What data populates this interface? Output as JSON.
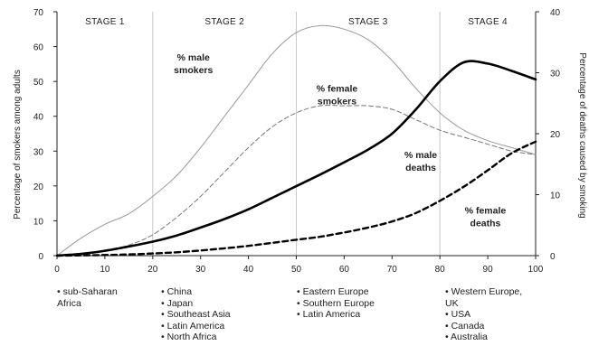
{
  "chart_data": {
    "type": "line",
    "title": "",
    "xlabel": "",
    "ylabel": "Percentage of smokers among adults",
    "y2label": "Percentage of deaths caused by smoking",
    "xlim": [
      0,
      100
    ],
    "ylim": [
      0,
      70
    ],
    "y2lim": [
      0,
      40
    ],
    "x_ticks": [
      "0",
      "10",
      "20",
      "30",
      "40",
      "50",
      "60",
      "70",
      "80",
      "90",
      "100"
    ],
    "y_ticks": [
      "0",
      "10",
      "20",
      "30",
      "40",
      "50",
      "60",
      "70"
    ],
    "y2_ticks": [
      "0",
      "10",
      "20",
      "30",
      "40"
    ],
    "grid": false,
    "stages": [
      {
        "label": "STAGE 1",
        "x_start": 0,
        "x_end": 20
      },
      {
        "label": "STAGE 2",
        "x_start": 20,
        "x_end": 50
      },
      {
        "label": "STAGE 3",
        "x_start": 50,
        "x_end": 80
      },
      {
        "label": "STAGE 4",
        "x_start": 80,
        "x_end": 100
      }
    ],
    "series": [
      {
        "name": "% male smokers",
        "axis": "left",
        "style": "thin-solid",
        "color": "#999999",
        "x": [
          0,
          5,
          10,
          15,
          20,
          25,
          30,
          35,
          40,
          45,
          50,
          55,
          60,
          65,
          70,
          75,
          80,
          85,
          90,
          95,
          100
        ],
        "values": [
          0,
          5,
          9,
          12,
          17,
          23,
          31,
          40,
          49,
          58,
          64,
          66,
          65,
          62,
          56,
          48,
          41,
          36,
          33,
          31,
          29
        ]
      },
      {
        "name": "% female smokers",
        "axis": "left",
        "style": "thin-dashed",
        "color": "#777777",
        "x": [
          0,
          5,
          10,
          15,
          20,
          25,
          30,
          35,
          40,
          45,
          50,
          55,
          60,
          65,
          70,
          75,
          80,
          85,
          90,
          95,
          100
        ],
        "values": [
          0,
          0.5,
          1.5,
          3,
          6,
          11,
          17,
          24,
          31,
          37,
          41,
          43,
          43,
          43,
          42,
          39,
          36,
          34,
          32,
          30,
          29
        ]
      },
      {
        "name": "% male deaths",
        "axis": "right",
        "style": "thick-solid",
        "color": "#000000",
        "x": [
          0,
          5,
          10,
          15,
          20,
          25,
          30,
          35,
          40,
          45,
          50,
          55,
          60,
          65,
          70,
          75,
          80,
          85,
          90,
          95,
          100
        ],
        "values": [
          0,
          0.3,
          0.8,
          1.5,
          2.3,
          3.3,
          4.6,
          6,
          7.6,
          9.5,
          11.4,
          13.3,
          15.3,
          17.4,
          20,
          24,
          28.6,
          31.7,
          31.5,
          30.3,
          28.9
        ]
      },
      {
        "name": "% female deaths",
        "axis": "right",
        "style": "thick-dashed",
        "color": "#000000",
        "x": [
          0,
          5,
          10,
          15,
          20,
          25,
          30,
          35,
          40,
          45,
          50,
          55,
          60,
          65,
          70,
          75,
          80,
          85,
          90,
          95,
          100
        ],
        "values": [
          0,
          0.05,
          0.1,
          0.2,
          0.35,
          0.55,
          0.85,
          1.2,
          1.6,
          2.1,
          2.6,
          3.1,
          3.8,
          4.6,
          5.6,
          7,
          9,
          11.3,
          14,
          16.8,
          18.7
        ]
      }
    ],
    "annotations": [
      {
        "series": "% male smokers",
        "lines": [
          "% male",
          "smokers"
        ],
        "x": 28.5,
        "y": 56
      },
      {
        "series": "% female smokers",
        "lines": [
          "% female",
          "smokers"
        ],
        "x": 58.5,
        "y": 47
      },
      {
        "series": "% male deaths",
        "lines": [
          "% male",
          "deaths"
        ],
        "x": 76,
        "y": 28
      },
      {
        "series": "% female deaths",
        "lines": [
          "% female",
          "deaths"
        ],
        "x": 89.5,
        "y": 12
      }
    ],
    "regions": [
      {
        "stage": "STAGE 1",
        "items": [
          "• sub-Saharan",
          "Africa"
        ]
      },
      {
        "stage": "STAGE 2",
        "items": [
          "• China",
          "• Japan",
          "• Southeast Asia",
          "• Latin America",
          "• North Africa"
        ]
      },
      {
        "stage": "STAGE 3",
        "items": [
          "• Eastern Europe",
          "• Southern Europe",
          "• Latin America"
        ]
      },
      {
        "stage": "STAGE 4",
        "items": [
          "• Western Europe,",
          "UK",
          "• USA",
          "• Canada",
          "• Australia"
        ]
      }
    ]
  }
}
